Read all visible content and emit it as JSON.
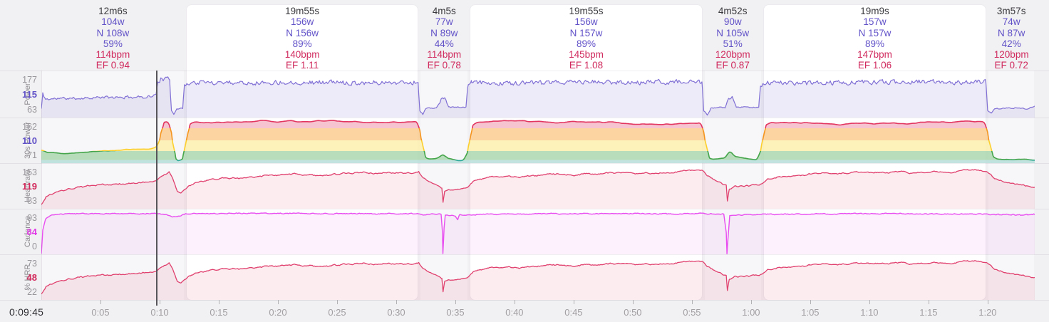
{
  "app": {
    "background": "#f1f0f2"
  },
  "chart_data": {
    "type": "line",
    "x_unit": "minutes",
    "total_minutes": 83.983,
    "cursor_minutes": 9.75,
    "axis": {
      "cursor_label": "0:09:45",
      "ticks": [
        {
          "m": 5,
          "label": "0:05"
        },
        {
          "m": 10,
          "label": "0:10"
        },
        {
          "m": 15,
          "label": "0:15"
        },
        {
          "m": 20,
          "label": "0:20"
        },
        {
          "m": 25,
          "label": "0:25"
        },
        {
          "m": 30,
          "label": "0:30"
        },
        {
          "m": 35,
          "label": "0:35"
        },
        {
          "m": 40,
          "label": "0:40"
        },
        {
          "m": 45,
          "label": "0:45"
        },
        {
          "m": 50,
          "label": "0:50"
        },
        {
          "m": 55,
          "label": "0:55"
        },
        {
          "m": 60,
          "label": "1:00"
        },
        {
          "m": 65,
          "label": "1:05"
        },
        {
          "m": 70,
          "label": "1:10"
        },
        {
          "m": 75,
          "label": "1:15"
        },
        {
          "m": 80,
          "label": "1:20"
        }
      ]
    },
    "laps": [
      {
        "duration": "12m6s",
        "power": "104w",
        "np": "N 108w",
        "pct": "59%",
        "hr": "114bpm",
        "ef": "EF 0.94",
        "minutes": 12.1,
        "work": false
      },
      {
        "duration": "19m55s",
        "power": "156w",
        "np": "N 156w",
        "pct": "89%",
        "hr": "140bpm",
        "ef": "EF 1.11",
        "minutes": 19.9166,
        "work": true
      },
      {
        "duration": "4m5s",
        "power": "77w",
        "np": "N 89w",
        "pct": "44%",
        "hr": "114bpm",
        "ef": "EF 0.78",
        "minutes": 4.0833,
        "work": false
      },
      {
        "duration": "19m55s",
        "power": "156w",
        "np": "N 157w",
        "pct": "89%",
        "hr": "145bpm",
        "ef": "EF 1.08",
        "minutes": 19.9166,
        "work": true
      },
      {
        "duration": "4m52s",
        "power": "90w",
        "np": "N 105w",
        "pct": "51%",
        "hr": "120bpm",
        "ef": "EF 0.87",
        "minutes": 4.8666,
        "work": false
      },
      {
        "duration": "19m9s",
        "power": "157w",
        "np": "N 157w",
        "pct": "89%",
        "hr": "147bpm",
        "ef": "EF 1.06",
        "minutes": 19.15,
        "work": true
      },
      {
        "duration": "3m57s",
        "power": "74w",
        "np": "N 87w",
        "pct": "42%",
        "hr": "120bpm",
        "ef": "EF 0.72",
        "minutes": 3.95,
        "work": false
      }
    ],
    "rows": [
      {
        "name": "Power",
        "series": "power",
        "labels": [
          "177",
          "115",
          "63"
        ],
        "accent": "#6152c8",
        "stroke": "#8170d5",
        "fill": "rgba(129,112,213,0.14)",
        "range": [
          30,
          200
        ],
        "stroke_w": 1.2
      },
      {
        "name": "30s Power",
        "series": "power_30s",
        "labels": [
          "162",
          "110",
          "71"
        ],
        "accent": "#6152c8",
        "range": [
          40,
          172
        ],
        "stroke_w": 1.6,
        "zones": [
          {
            "max": 49,
            "stroke": "#2aa79a",
            "fill": "#b7ded9"
          },
          {
            "max": 75.5,
            "stroke": "#44a54a",
            "fill": "#abd7ae"
          },
          {
            "max": 106,
            "stroke": "#fccf2f",
            "fill": "#fcf0ae"
          },
          {
            "max": 141,
            "stroke": "#f5951f",
            "fill": "#facd92"
          },
          {
            "max": 10000,
            "stroke": "#e23560",
            "fill": "#f5bac9"
          }
        ]
      },
      {
        "name": "Heartrate",
        "series": "heartrate",
        "labels": [
          "153",
          "119",
          "83"
        ],
        "accent": "#d22a5c",
        "stroke": "#e0406e",
        "fill": "rgba(224,64,110,0.10)",
        "range": [
          71,
          164
        ],
        "stroke_w": 1.3
      },
      {
        "name": "Cadence",
        "series": "cadence",
        "labels": [
          "93",
          "84",
          "0"
        ],
        "accent": "#e03ae6",
        "stroke": "#e84ef0",
        "fill": "rgba(232,78,240,0.08)",
        "range": [
          0,
          104
        ],
        "stroke_w": 1.4
      },
      {
        "name": "% HRR",
        "series": "hrr",
        "labels": [
          "73",
          "48",
          "22"
        ],
        "accent": "#d22a5c",
        "stroke": "#e0406e",
        "fill": "rgba(224,64,110,0.10)",
        "range": [
          9.5,
          81.5
        ],
        "stroke_w": 1.3
      }
    ],
    "hrr_from_heartrate": {
      "subtract": 53.7,
      "divide": 1.36
    },
    "series": [
      {
        "key": "power",
        "seed": 11,
        "noise": {
          "k": 0.3,
          "amp_low": 1.5,
          "mid": 80,
          "amp_mid": 3.8,
          "hi": 130,
          "amp_hi": 6.5,
          "slow": 1.2
        },
        "breakpoints": [
          [
            0,
            62
          ],
          [
            0.12,
            116
          ],
          [
            0.35,
            96
          ],
          [
            1.5,
            99
          ],
          [
            4,
            101
          ],
          [
            7,
            103
          ],
          [
            9,
            106
          ],
          [
            9.7,
            112
          ],
          [
            9.85,
            164
          ],
          [
            10.1,
            169
          ],
          [
            10.85,
            167
          ],
          [
            11.0,
            58
          ],
          [
            11.2,
            42
          ],
          [
            11.45,
            62
          ],
          [
            11.95,
            63
          ],
          [
            12.1,
            148
          ],
          [
            12.4,
            156
          ],
          [
            14,
            157
          ],
          [
            31.85,
            158
          ],
          [
            32.0,
            55
          ],
          [
            32.25,
            42
          ],
          [
            32.5,
            63
          ],
          [
            33.4,
            65
          ],
          [
            33.8,
            94
          ],
          [
            34.1,
            98
          ],
          [
            34.45,
            67
          ],
          [
            35.9,
            66
          ],
          [
            36.05,
            146
          ],
          [
            36.35,
            156
          ],
          [
            55.85,
            158
          ],
          [
            56.0,
            55
          ],
          [
            56.3,
            42
          ],
          [
            56.6,
            65
          ],
          [
            57.8,
            67
          ],
          [
            58.1,
            102
          ],
          [
            58.4,
            105
          ],
          [
            58.75,
            69
          ],
          [
            60.65,
            67
          ],
          [
            60.8,
            146
          ],
          [
            61.1,
            156
          ],
          [
            79.85,
            158
          ],
          [
            80.0,
            55
          ],
          [
            80.3,
            44
          ],
          [
            80.6,
            62
          ],
          [
            81.5,
            63
          ],
          [
            83.4,
            62
          ],
          [
            84,
            70
          ]
        ]
      },
      {
        "key": "power_30s",
        "seed": 22,
        "noise": {
          "k": 0.85,
          "amp_low": 0.6,
          "hi": 140,
          "amp_hi": 1.6,
          "slow": 2.2,
          "smooth": 2
        },
        "breakpoints": [
          [
            0,
            79
          ],
          [
            0.5,
            72
          ],
          [
            1.5,
            73
          ],
          [
            4,
            76
          ],
          [
            7,
            80
          ],
          [
            9.4,
            86
          ],
          [
            9.8,
            90
          ],
          [
            10.05,
            118
          ],
          [
            10.35,
            158
          ],
          [
            10.8,
            157
          ],
          [
            11.05,
            112
          ],
          [
            11.35,
            50
          ],
          [
            11.55,
            44
          ],
          [
            11.95,
            48
          ],
          [
            12.2,
            95
          ],
          [
            12.55,
            152
          ],
          [
            13.0,
            158
          ],
          [
            31.8,
            158
          ],
          [
            32.05,
            120
          ],
          [
            32.45,
            55
          ],
          [
            32.7,
            49
          ],
          [
            33.4,
            50
          ],
          [
            33.95,
            64
          ],
          [
            34.35,
            54
          ],
          [
            35.7,
            48
          ],
          [
            36.05,
            75
          ],
          [
            36.45,
            150
          ],
          [
            36.9,
            157
          ],
          [
            55.8,
            158
          ],
          [
            56.05,
            118
          ],
          [
            56.45,
            54
          ],
          [
            56.8,
            50
          ],
          [
            57.8,
            52
          ],
          [
            58.2,
            72
          ],
          [
            58.6,
            56
          ],
          [
            60.5,
            49
          ],
          [
            60.85,
            80
          ],
          [
            61.25,
            150
          ],
          [
            61.7,
            157
          ],
          [
            79.8,
            158
          ],
          [
            80.05,
            115
          ],
          [
            80.45,
            52
          ],
          [
            80.8,
            46
          ],
          [
            82.5,
            46
          ],
          [
            83.5,
            47
          ],
          [
            84,
            48
          ]
        ]
      },
      {
        "key": "heartrate",
        "seed": 33,
        "noise": {
          "k": 0.6,
          "amp_low": 1.3,
          "slow": 1.8
        },
        "breakpoints": [
          [
            0,
            79
          ],
          [
            0.4,
            94
          ],
          [
            1.2,
            103
          ],
          [
            2.5,
            109
          ],
          [
            5,
            115
          ],
          [
            8,
            122
          ],
          [
            9.7,
            128
          ],
          [
            10.2,
            138
          ],
          [
            10.8,
            146
          ],
          [
            11.1,
            134
          ],
          [
            11.5,
            107
          ],
          [
            11.8,
            105
          ],
          [
            12.2,
            112
          ],
          [
            13,
            124
          ],
          [
            15,
            132
          ],
          [
            18,
            136
          ],
          [
            22,
            139
          ],
          [
            27,
            142
          ],
          [
            31.9,
            147
          ],
          [
            32.3,
            134
          ],
          [
            33.0,
            123
          ],
          [
            33.6,
            118
          ],
          [
            33.86,
            116
          ],
          [
            33.96,
            88
          ],
          [
            34.1,
            110
          ],
          [
            34.5,
            113
          ],
          [
            35.9,
            116
          ],
          [
            36.6,
            129
          ],
          [
            38,
            136
          ],
          [
            41,
            140
          ],
          [
            46,
            143
          ],
          [
            51,
            145
          ],
          [
            55.9,
            149
          ],
          [
            56.3,
            137
          ],
          [
            57.0,
            126
          ],
          [
            57.6,
            121
          ],
          [
            57.9,
            119
          ],
          [
            58.0,
            87
          ],
          [
            58.15,
            110
          ],
          [
            58.6,
            116
          ],
          [
            60.7,
            121
          ],
          [
            61.4,
            132
          ],
          [
            63,
            139
          ],
          [
            66,
            143
          ],
          [
            70,
            145
          ],
          [
            75,
            148
          ],
          [
            79.9,
            151
          ],
          [
            80.5,
            139
          ],
          [
            81.3,
            130
          ],
          [
            82.3,
            124
          ],
          [
            83.2,
            121
          ],
          [
            84,
            119
          ]
        ]
      },
      {
        "key": "cadence",
        "seed": 44,
        "noise": {
          "k": 0.5,
          "amp_low": 1.1,
          "late_t": 79.9,
          "amp_late": 1.8,
          "slow": 0.3
        },
        "breakpoints": [
          [
            0,
            1
          ],
          [
            0.12,
            55
          ],
          [
            0.35,
            80
          ],
          [
            0.8,
            89
          ],
          [
            1.5,
            92
          ],
          [
            3,
            93
          ],
          [
            9.6,
            93
          ],
          [
            10.6,
            91
          ],
          [
            11.1,
            86
          ],
          [
            11.6,
            87
          ],
          [
            12.2,
            92
          ],
          [
            16,
            93
          ],
          [
            31.8,
            93
          ],
          [
            32.3,
            90
          ],
          [
            33.0,
            92
          ],
          [
            33.8,
            92
          ],
          [
            33.9,
            55
          ],
          [
            33.95,
            2
          ],
          [
            34.05,
            60
          ],
          [
            34.15,
            89
          ],
          [
            35.0,
            88
          ],
          [
            35.2,
            80
          ],
          [
            35.35,
            90
          ],
          [
            38,
            92
          ],
          [
            55.8,
            93
          ],
          [
            57.7,
            92
          ],
          [
            57.9,
            50
          ],
          [
            57.96,
            2
          ],
          [
            58.1,
            55
          ],
          [
            58.2,
            89
          ],
          [
            59.5,
            91
          ],
          [
            70,
            93
          ],
          [
            79.8,
            92
          ],
          [
            80.4,
            90
          ],
          [
            81.5,
            91
          ],
          [
            83,
            89
          ],
          [
            84,
            91
          ]
        ]
      }
    ]
  }
}
